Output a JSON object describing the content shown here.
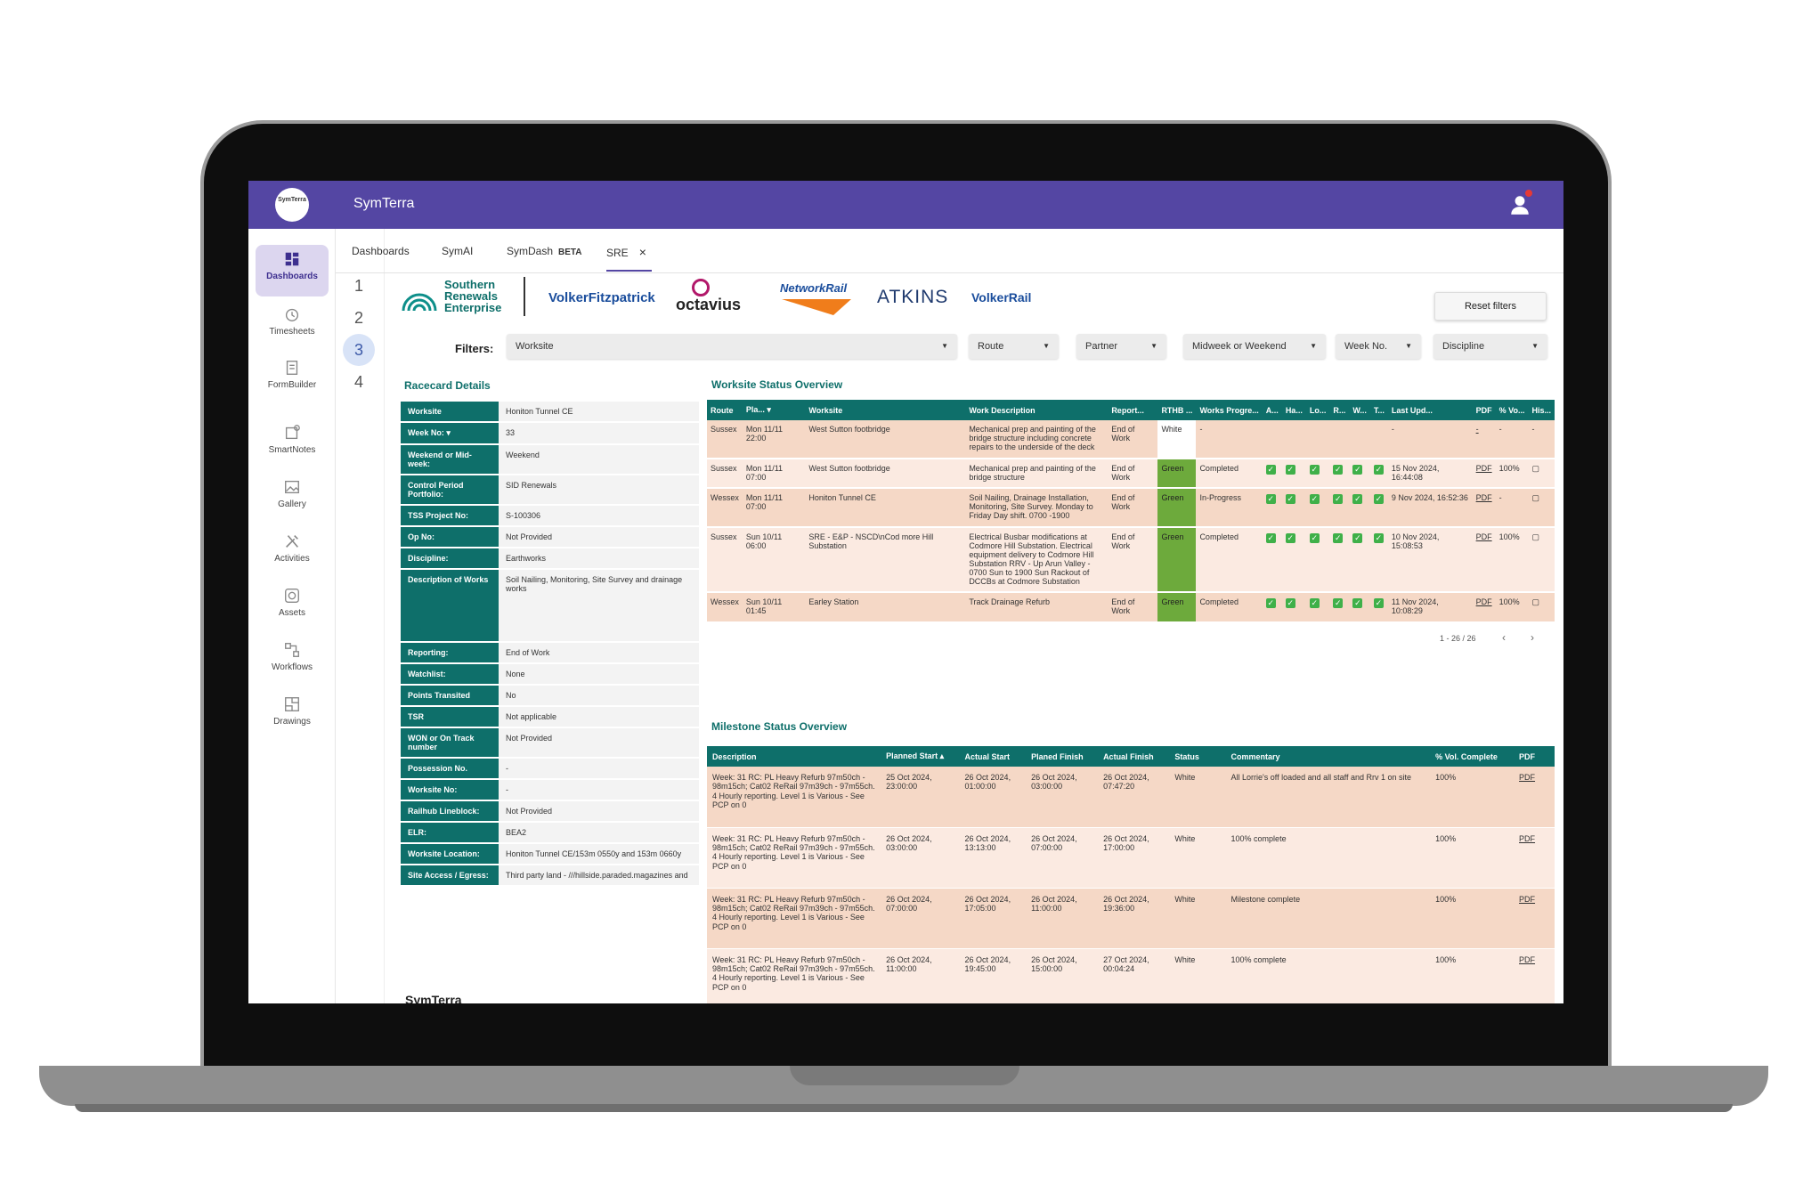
{
  "app": {
    "title": "SymTerra",
    "logo_text": "SymTerra"
  },
  "colors": {
    "brand": "#5446a3",
    "teal": "#0e6f6a",
    "green_status": "#6daa3c"
  },
  "sidebar": {
    "items": [
      {
        "label": "Dashboards",
        "icon": "dashboard-icon",
        "active": true
      },
      {
        "label": "Timesheets",
        "icon": "clock-icon"
      },
      {
        "label": "FormBuilder",
        "icon": "form-icon"
      },
      {
        "label": "SmartNotes",
        "icon": "notes-icon"
      },
      {
        "label": "Gallery",
        "icon": "image-icon"
      },
      {
        "label": "Activities",
        "icon": "tools-icon"
      },
      {
        "label": "Assets",
        "icon": "asset-icon"
      },
      {
        "label": "Workflows",
        "icon": "workflow-icon"
      },
      {
        "label": "Drawings",
        "icon": "drawing-icon"
      }
    ]
  },
  "steps": [
    "1",
    "2",
    "3",
    "4"
  ],
  "tabs": [
    {
      "label": "Dashboards"
    },
    {
      "label": "SymAI"
    },
    {
      "label": "SymDash",
      "badge": "BETA"
    },
    {
      "label": "SRE",
      "active": true
    }
  ],
  "partners": [
    "Southern",
    "Renewals",
    "Enterprise",
    "VolkerFitzpatrick",
    "octavius",
    "NetworkRail",
    "ATKINS",
    "VolkerRail"
  ],
  "filters": {
    "label": "Filters:",
    "reset": "Reset filters",
    "items": [
      "Worksite",
      "Route",
      "Partner",
      "Midweek or Weekend",
      "Week No.",
      "Discipline"
    ]
  },
  "racecard": {
    "title": "Racecard Details",
    "rows": [
      {
        "k": "Worksite",
        "v": "Honiton Tunnel CE"
      },
      {
        "k": "Week No: ▾",
        "v": "33"
      },
      {
        "k": "Weekend or Mid-week:",
        "v": "Weekend"
      },
      {
        "k": "Control Period Portfolio:",
        "v": "SID Renewals"
      },
      {
        "k": "TSS Project No:",
        "v": "S-100306"
      },
      {
        "k": "Op No:",
        "v": "Not Provided"
      },
      {
        "k": "Discipline:",
        "v": "Earthworks"
      },
      {
        "k": "Description of Works",
        "v": "Soil Nailing, Monitoring, Site Survey and drainage works"
      },
      {
        "k": "Reporting:",
        "v": "End of Work"
      },
      {
        "k": "Watchlist:",
        "v": "None"
      },
      {
        "k": "Points Transited",
        "v": "No"
      },
      {
        "k": "TSR",
        "v": "Not applicable"
      },
      {
        "k": "WON or On Track number",
        "v": "Not Provided"
      },
      {
        "k": "Possession No.",
        "v": "-"
      },
      {
        "k": "Worksite No:",
        "v": "-"
      },
      {
        "k": "Railhub Lineblock:",
        "v": "Not Provided"
      },
      {
        "k": "ELR:",
        "v": "BEA2"
      },
      {
        "k": "Worksite Location:",
        "v": "Honiton Tunnel CE/153m 0550y and 153m 0660y"
      },
      {
        "k": "Site Access / Egress:",
        "v": "Third party land - ///hillside.paraded.magazines and"
      }
    ]
  },
  "worksite": {
    "title": "Worksite Status Overview",
    "headers": [
      "Route",
      "Pla... ▾",
      "Worksite",
      "Work Description",
      "Report...",
      "RTHB ...",
      "Works Progre...",
      "A...",
      "Ha...",
      "Lo...",
      "R...",
      "W...",
      "T...",
      "Last Upd...",
      "PDF",
      "% Vo...",
      "His..."
    ],
    "rows": [
      {
        "route": "Sussex",
        "planned": "Mon 11/11 22:00",
        "worksite": "West Sutton footbridge",
        "desc": "Mechanical prep and painting of the bridge structure including concrete repairs to the underside of the deck",
        "report": "End of Work",
        "rthb": "White",
        "progress": "-",
        "checks": false,
        "updated": "-",
        "pdf": "-",
        "vol": "-",
        "hist": "-"
      },
      {
        "route": "Sussex",
        "planned": "Mon 11/11 07:00",
        "worksite": "West Sutton footbridge",
        "desc": "Mechanical prep and painting of the bridge structure",
        "report": "End of Work",
        "rthb": "Green",
        "progress": "Completed",
        "checks": true,
        "updated": "15 Nov 2024, 16:44:08",
        "pdf": "PDF",
        "vol": "100%",
        "hist": "▢"
      },
      {
        "route": "Wessex",
        "planned": "Mon 11/11 07:00",
        "worksite": "Honiton Tunnel CE",
        "desc": "Soil Nailing, Drainage Installation, Monitoring, Site Survey. Monday to Friday Day shift. 0700 -1900",
        "report": "End of Work",
        "rthb": "Green",
        "progress": "In-Progress",
        "checks": true,
        "updated": "9 Nov 2024, 16:52:36",
        "pdf": "PDF",
        "vol": "-",
        "hist": "▢"
      },
      {
        "route": "Sussex",
        "planned": "Sun 10/11 06:00",
        "worksite": "SRE - E&P - NSCD\\nCod more Hill Substation",
        "desc": "Electrical Busbar modifications at Codmore Hill Substation. Electrical equipment delivery to Codmore Hill Substation RRV - Up Arun Valley - 0700 Sun to 1900 Sun Rackout of DCCBs at Codmore Substation",
        "report": "End of Work",
        "rthb": "Green",
        "progress": "Completed",
        "checks": true,
        "updated": "10 Nov 2024, 15:08:53",
        "pdf": "PDF",
        "vol": "100%",
        "hist": "▢"
      },
      {
        "route": "Wessex",
        "planned": "Sun 10/11 01:45",
        "worksite": "Earley Station",
        "desc": "Track Drainage Refurb",
        "report": "End of Work",
        "rthb": "Green",
        "progress": "Completed",
        "checks": true,
        "updated": "11 Nov 2024, 10:08:29",
        "pdf": "PDF",
        "vol": "100%",
        "hist": "▢"
      }
    ],
    "pager": "1 - 26 / 26",
    "check_mark": "✓",
    "prev": "‹",
    "next": "›"
  },
  "milestone": {
    "title": "Milestone Status Overview",
    "headers": [
      "Description",
      "Planned Start ▴",
      "Actual Start",
      "Planed Finish",
      "Actual Finish",
      "Status",
      "Commentary",
      "% Vol. Complete",
      "PDF"
    ],
    "rows": [
      {
        "desc": "Week: 31 RC: PL Heavy Refurb 97m50ch - 98m15ch; Cat02 ReRail 97m39ch - 97m55ch. 4 Hourly reporting. Level 1 is Various - See PCP on 0",
        "ps": "25 Oct 2024, 23:00:00",
        "as": "26 Oct 2024, 01:00:00",
        "pf": "26 Oct 2024, 03:00:00",
        "af": "26 Oct 2024, 07:47:20",
        "status": "White",
        "comment": "All Lorrie's off loaded and all staff and Rrv 1 on site",
        "vol": "100%",
        "pdf": "PDF"
      },
      {
        "desc": "Week: 31 RC: PL Heavy Refurb 97m50ch - 98m15ch; Cat02 ReRail 97m39ch - 97m55ch. 4 Hourly reporting. Level 1 is Various - See PCP on 0",
        "ps": "26 Oct 2024, 03:00:00",
        "as": "26 Oct 2024, 13:13:00",
        "pf": "26 Oct 2024, 07:00:00",
        "af": "26 Oct 2024, 17:00:00",
        "status": "White",
        "comment": "100% complete",
        "vol": "100%",
        "pdf": "PDF"
      },
      {
        "desc": "Week: 31 RC: PL Heavy Refurb 97m50ch - 98m15ch; Cat02 ReRail 97m39ch - 97m55ch. 4 Hourly reporting. Level 1 is Various - See PCP on 0",
        "ps": "26 Oct 2024, 07:00:00",
        "as": "26 Oct 2024, 17:05:00",
        "pf": "26 Oct 2024, 11:00:00",
        "af": "26 Oct 2024, 19:36:00",
        "status": "White",
        "comment": "Milestone complete",
        "vol": "100%",
        "pdf": "PDF"
      },
      {
        "desc": "Week: 31 RC: PL Heavy Refurb 97m50ch - 98m15ch; Cat02 ReRail 97m39ch - 97m55ch. 4 Hourly reporting. Level 1 is Various - See PCP on 0",
        "ps": "26 Oct 2024, 11:00:00",
        "as": "26 Oct 2024, 19:45:00",
        "pf": "26 Oct 2024, 15:00:00",
        "af": "27 Oct 2024, 00:04:24",
        "status": "White",
        "comment": "100% complete",
        "vol": "100%",
        "pdf": "PDF"
      }
    ]
  },
  "footer": {
    "logo_text": "SymTerra"
  }
}
